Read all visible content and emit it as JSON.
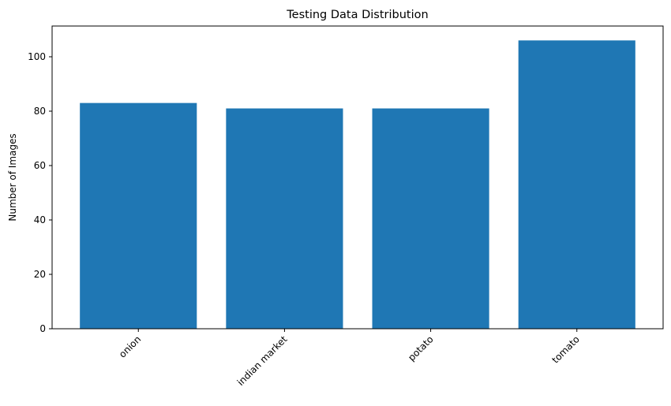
{
  "chart_data": {
    "type": "bar",
    "title": "Testing Data Distribution",
    "xlabel": "",
    "ylabel": "Number of Images",
    "categories": [
      "onion",
      "indian market",
      "potato",
      "tomato"
    ],
    "values": [
      83,
      81,
      81,
      106
    ],
    "ylim": [
      0,
      111.3
    ],
    "yticks": [
      0,
      20,
      40,
      60,
      80,
      100
    ],
    "bar_color": "#1f77b4",
    "grid": false,
    "xtick_rotation_deg": 45
  }
}
